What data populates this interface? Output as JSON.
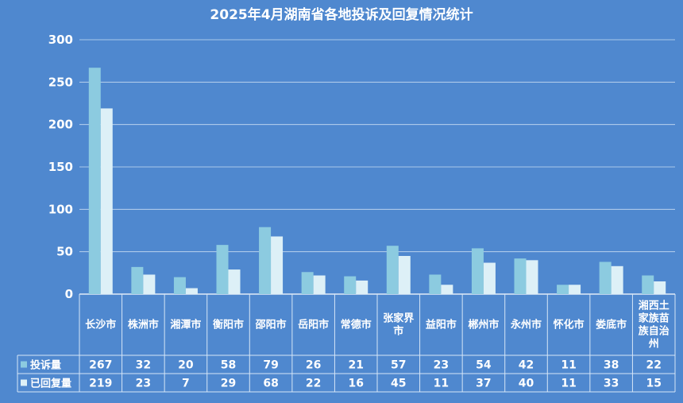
{
  "chart_data": {
    "type": "bar",
    "title": "2025年4月湖南省各地投诉及回复情况统计",
    "categories": [
      "长沙市",
      "株洲市",
      "湘潭市",
      "衡阳市",
      "邵阳市",
      "岳阳市",
      "常德市",
      "张家界市",
      "益阳市",
      "郴州市",
      "永州市",
      "怀化市",
      "娄底市",
      "湘西土家族苗族自治州"
    ],
    "category_lines": [
      [
        "长沙市"
      ],
      [
        "株洲市"
      ],
      [
        "湘潭市"
      ],
      [
        "衡阳市"
      ],
      [
        "邵阳市"
      ],
      [
        "岳阳市"
      ],
      [
        "常德市"
      ],
      [
        "张家界",
        "市"
      ],
      [
        "益阳市"
      ],
      [
        "郴州市"
      ],
      [
        "永州市"
      ],
      [
        "怀化市"
      ],
      [
        "娄底市"
      ],
      [
        "湘西土",
        "家族苗",
        "族自治",
        "州"
      ]
    ],
    "series": [
      {
        "name": "投诉量",
        "color": "#8ccbe0",
        "values": [
          267,
          32,
          20,
          58,
          79,
          26,
          21,
          57,
          23,
          54,
          42,
          11,
          38,
          22
        ]
      },
      {
        "name": "已回复量",
        "color": "#ddf0f7",
        "values": [
          219,
          23,
          7,
          29,
          68,
          22,
          16,
          45,
          11,
          37,
          40,
          11,
          33,
          15
        ]
      }
    ],
    "y_ticks": [
      0,
      50,
      100,
      150,
      200,
      250,
      300
    ],
    "ylim": [
      0,
      300
    ],
    "grid": true,
    "legend": "data-table"
  }
}
